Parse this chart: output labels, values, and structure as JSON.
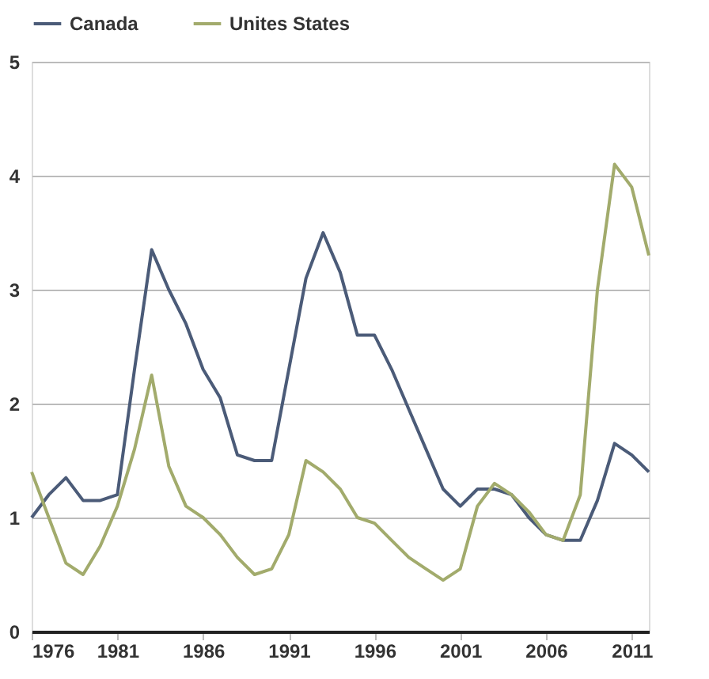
{
  "chart_data": {
    "type": "line",
    "x": [
      1976,
      1977,
      1978,
      1979,
      1980,
      1981,
      1982,
      1983,
      1984,
      1985,
      1986,
      1987,
      1988,
      1989,
      1990,
      1991,
      1992,
      1993,
      1994,
      1995,
      1996,
      1997,
      1998,
      1999,
      2000,
      2001,
      2002,
      2003,
      2004,
      2005,
      2006,
      2007,
      2008,
      2009,
      2010,
      2011,
      2012
    ],
    "series": [
      {
        "name": "Canada",
        "color": "#4b5b78",
        "values": [
          1.0,
          1.2,
          1.35,
          1.15,
          1.15,
          1.2,
          2.3,
          3.35,
          3.0,
          2.7,
          2.3,
          2.05,
          1.55,
          1.5,
          1.5,
          2.3,
          3.1,
          3.5,
          3.15,
          2.6,
          2.6,
          2.3,
          1.95,
          1.6,
          1.25,
          1.1,
          1.25,
          1.25,
          1.2,
          1.0,
          0.85,
          0.8,
          0.8,
          1.15,
          1.65,
          1.55,
          1.4
        ]
      },
      {
        "name": "Unites States",
        "color": "#a2ab6c",
        "values": [
          1.4,
          1.0,
          0.6,
          0.5,
          0.75,
          1.1,
          1.6,
          2.25,
          1.45,
          1.1,
          1.0,
          0.85,
          0.65,
          0.5,
          0.55,
          0.85,
          1.5,
          1.4,
          1.25,
          1.0,
          0.95,
          0.8,
          0.65,
          0.55,
          0.45,
          0.55,
          1.1,
          1.3,
          1.2,
          1.05,
          0.85,
          0.8,
          1.2,
          3.0,
          4.1,
          3.9,
          3.3
        ]
      }
    ],
    "xlim": [
      1976,
      2012
    ],
    "xticks": [
      1976,
      1981,
      1986,
      1991,
      1996,
      2001,
      2006,
      2011
    ],
    "ylim": [
      0,
      5
    ],
    "yticks": [
      0,
      1,
      2,
      3,
      4,
      5
    ],
    "grid": "y",
    "legend": "top",
    "marker": "none",
    "line_style": "solid"
  }
}
